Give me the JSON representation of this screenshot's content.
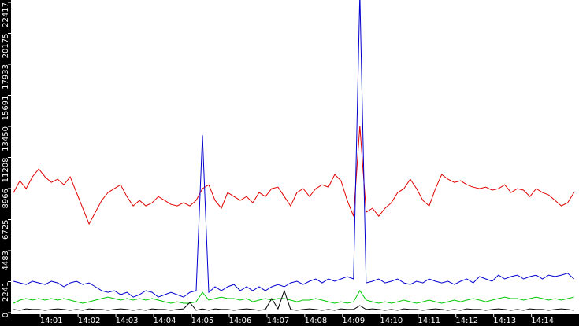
{
  "chart_data": {
    "type": "line",
    "x": [
      "14:00:00",
      "14:00:10",
      "14:00:20",
      "14:00:30",
      "14:00:40",
      "14:00:50",
      "14:01:00",
      "14:01:10",
      "14:01:20",
      "14:01:30",
      "14:01:40",
      "14:01:50",
      "14:02:00",
      "14:02:10",
      "14:02:20",
      "14:02:30",
      "14:02:40",
      "14:02:50",
      "14:03:00",
      "14:03:10",
      "14:03:20",
      "14:03:30",
      "14:03:40",
      "14:03:50",
      "14:04:00",
      "14:04:10",
      "14:04:20",
      "14:04:30",
      "14:04:40",
      "14:04:50",
      "14:05:00",
      "14:05:10",
      "14:05:20",
      "14:05:30",
      "14:05:40",
      "14:05:50",
      "14:06:00",
      "14:06:10",
      "14:06:20",
      "14:06:30",
      "14:06:40",
      "14:06:50",
      "14:07:00",
      "14:07:10",
      "14:07:20",
      "14:07:30",
      "14:07:40",
      "14:07:50",
      "14:08:00",
      "14:08:10",
      "14:08:20",
      "14:08:30",
      "14:08:40",
      "14:08:50",
      "14:09:00",
      "14:09:10",
      "14:09:20",
      "14:09:30",
      "14:09:40",
      "14:09:50",
      "14:10:00",
      "14:10:10",
      "14:10:20",
      "14:10:30",
      "14:10:40",
      "14:10:50",
      "14:11:00",
      "14:11:10",
      "14:11:20",
      "14:11:30",
      "14:11:40",
      "14:11:50",
      "14:12:00",
      "14:12:10",
      "14:12:20",
      "14:12:30",
      "14:12:40",
      "14:12:50",
      "14:13:00",
      "14:13:10",
      "14:13:20",
      "14:13:30",
      "14:13:40",
      "14:13:50",
      "14:14:00",
      "14:14:10",
      "14:14:20",
      "14:14:30",
      "14:14:40",
      "14:14:50"
    ],
    "series": [
      {
        "color": "#e00000",
        "values": [
          8680,
          9530,
          8960,
          9810,
          10380,
          9810,
          9410,
          9640,
          9240,
          9810,
          8680,
          7540,
          6410,
          7260,
          8110,
          8680,
          8960,
          9240,
          8390,
          7710,
          8110,
          7710,
          7940,
          8390,
          8110,
          7820,
          7710,
          7940,
          7710,
          8110,
          8960,
          9240,
          8110,
          7540,
          8680,
          8390,
          8110,
          8390,
          7940,
          8680,
          8390,
          8960,
          9070,
          8390,
          7710,
          8680,
          8960,
          8390,
          8960,
          9240,
          9070,
          9980,
          9530,
          8110,
          6970,
          13490,
          7260,
          7540,
          6970,
          7540,
          7940,
          8680,
          8960,
          9640,
          8960,
          8110,
          7710,
          8960,
          9980,
          9640,
          9410,
          9530,
          9240,
          9070,
          8960,
          9070,
          8850,
          8960,
          9240,
          8680,
          8960,
          8850,
          8390,
          8960,
          8680,
          8500,
          8110,
          7710,
          7940,
          8680
        ]
      },
      {
        "color": "#0000d0",
        "values": [
          2270,
          2150,
          2040,
          2270,
          2150,
          2040,
          2270,
          2150,
          1870,
          2150,
          2270,
          2040,
          2150,
          1870,
          1590,
          1470,
          1590,
          1300,
          1470,
          1130,
          1300,
          1590,
          1470,
          1130,
          1300,
          1470,
          1300,
          1130,
          1470,
          1590,
          12810,
          1470,
          1870,
          1590,
          1870,
          2040,
          1590,
          1870,
          1590,
          1870,
          1590,
          1870,
          2040,
          1870,
          2150,
          2270,
          2040,
          2270,
          2440,
          2150,
          2440,
          2270,
          2440,
          2610,
          2440,
          23000,
          2150,
          2270,
          2440,
          2150,
          2270,
          2440,
          2150,
          2040,
          2270,
          2150,
          2440,
          2270,
          2150,
          2270,
          2040,
          2270,
          2440,
          2150,
          2610,
          2440,
          2270,
          2720,
          2440,
          2610,
          2720,
          2440,
          2610,
          2720,
          2440,
          2720,
          2610,
          2720,
          2850,
          2440
        ]
      },
      {
        "color": "#00c800",
        "values": [
          680,
          910,
          1020,
          910,
          1020,
          910,
          1020,
          910,
          1020,
          910,
          790,
          680,
          790,
          910,
          1020,
          1130,
          1020,
          910,
          1020,
          910,
          1020,
          910,
          1020,
          910,
          790,
          680,
          790,
          680,
          680,
          790,
          1470,
          910,
          1020,
          1130,
          1020,
          1020,
          910,
          1020,
          790,
          910,
          1020,
          910,
          1020,
          1020,
          910,
          790,
          910,
          910,
          1020,
          910,
          790,
          680,
          790,
          680,
          790,
          1590,
          910,
          790,
          680,
          790,
          680,
          790,
          910,
          790,
          680,
          790,
          910,
          790,
          680,
          790,
          910,
          790,
          910,
          1020,
          910,
          790,
          910,
          1020,
          1130,
          1020,
          1020,
          910,
          1020,
          1130,
          1020,
          910,
          1020,
          910,
          1020,
          1130
        ]
      },
      {
        "color": "#000000",
        "values": [
          230,
          170,
          280,
          230,
          230,
          170,
          230,
          280,
          230,
          170,
          230,
          170,
          280,
          230,
          230,
          170,
          230,
          280,
          230,
          170,
          230,
          170,
          280,
          230,
          230,
          170,
          230,
          280,
          740,
          170,
          280,
          170,
          280,
          230,
          230,
          170,
          230,
          280,
          230,
          170,
          230,
          1020,
          280,
          1590,
          230,
          170,
          230,
          280,
          230,
          170,
          230,
          170,
          280,
          230,
          230,
          510,
          230,
          280,
          230,
          170,
          230,
          170,
          280,
          230,
          230,
          170,
          230,
          280,
          230,
          170,
          230,
          170,
          280,
          230,
          230,
          170,
          230,
          280,
          230,
          170,
          230,
          170,
          280,
          230,
          230,
          170,
          230,
          280,
          230,
          170
        ]
      }
    ],
    "xlim": [
      "13:59:56",
      "14:14:58"
    ],
    "xticks": [
      "14:01",
      "14:02",
      "14:03",
      "14:04",
      "14:05",
      "14:06",
      "14:07",
      "14:08",
      "14:09",
      "14:10",
      "14:11",
      "14:12",
      "14:13",
      "14:14"
    ],
    "ylim": [
      0,
      22417
    ],
    "yticks": [
      0,
      2241,
      4483,
      6725,
      8966,
      11208,
      13450,
      15691,
      17933,
      20175,
      22417
    ],
    "grid": false
  }
}
